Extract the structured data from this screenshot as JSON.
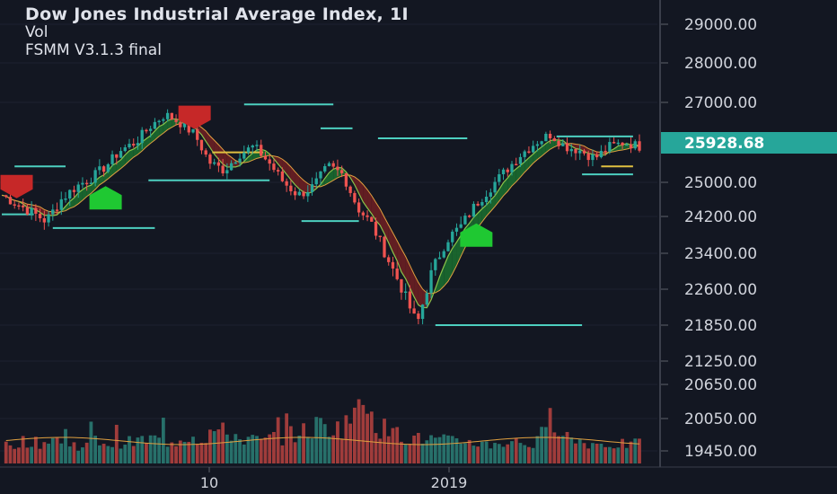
{
  "legend": {
    "title": "Dow Jones Industrial Average Index, 1I",
    "volume_label": "Vol",
    "indicator_label": "FSMM V3.1.3 final"
  },
  "colors": {
    "background": "#131722",
    "up": "#26a69a",
    "down": "#ef5350",
    "level_line": "#4dd0c0",
    "price_badge": "#26a69a",
    "ribbon_up": "#1b6b2f",
    "ribbon_down": "#6b1f22"
  },
  "chart_data": {
    "type": "candlestick",
    "title": "Dow Jones Industrial Average Index, 1I",
    "y_axis": {
      "ticks": [
        "29000.00",
        "28000.00",
        "27000.00",
        "25000.00",
        "24200.00",
        "23400.00",
        "22600.00",
        "21850.00",
        "21250.00",
        "20650.00",
        "20050.00",
        "19450.00"
      ],
      "last_price": "25928.68"
    },
    "x_axis": {
      "ticks": [
        "10",
        "2019"
      ]
    },
    "price_series": [
      24700,
      24500,
      24300,
      24100,
      24600,
      24900,
      25100,
      25400,
      25800,
      26000,
      26400,
      26700,
      26500,
      26200,
      25500,
      25300,
      25700,
      25900,
      25500,
      25000,
      24700,
      24900,
      25400,
      25200,
      24400,
      24000,
      23300,
      22600,
      21850,
      23000,
      23700,
      24000,
      24500,
      24900,
      25300,
      25700,
      26000,
      26200,
      25900,
      25800,
      25600,
      25900,
      26000,
      25900
    ],
    "signals": [
      {
        "type": "sell",
        "index": 1
      },
      {
        "type": "buy",
        "index": 7
      },
      {
        "type": "sell",
        "index": 13
      },
      {
        "type": "buy",
        "index": 32
      }
    ],
    "volume_relative": [
      0.3,
      0.35,
      0.32,
      0.4,
      0.3,
      0.28,
      0.35,
      0.3,
      0.33,
      0.36,
      0.38,
      0.34,
      0.42,
      0.4,
      0.5,
      0.45,
      0.38,
      0.35,
      0.4,
      0.45,
      0.5,
      0.6,
      0.55,
      0.7,
      1.0,
      0.55,
      0.45,
      0.4,
      0.38,
      0.36,
      0.34,
      0.35,
      0.3,
      0.32,
      0.34,
      0.3,
      0.45,
      0.6,
      0.35,
      0.32,
      0.3,
      0.3,
      0.3,
      0.3
    ]
  }
}
